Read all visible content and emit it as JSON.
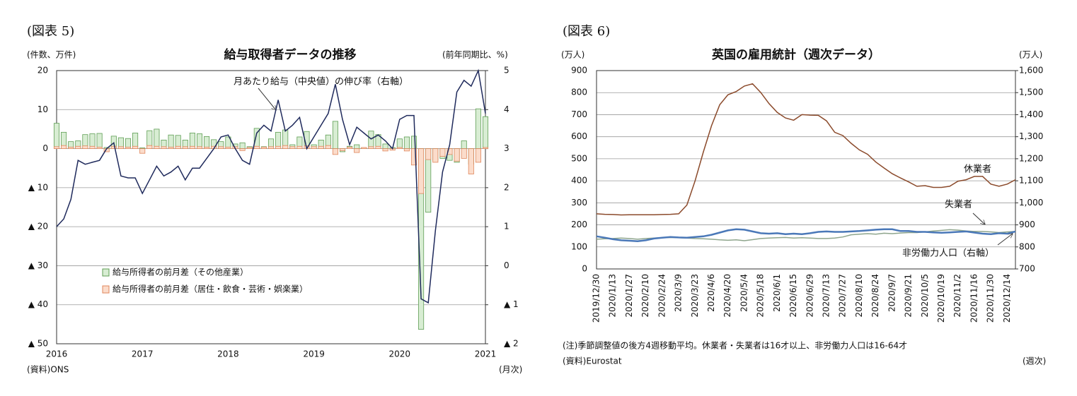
{
  "chart_data": [
    {
      "type": "combo",
      "figure_label": "(図表 5)",
      "title": "給与取得者データの推移",
      "y_unit": "(件数、万件)",
      "y2_unit": "(前年同期比、%)",
      "source": "(資料)ONS",
      "x_unit": "(月次)",
      "categories": [
        "2016",
        null,
        null,
        null,
        null,
        null,
        null,
        null,
        null,
        null,
        null,
        null,
        "2017",
        null,
        null,
        null,
        null,
        null,
        null,
        null,
        null,
        null,
        null,
        null,
        "2018",
        null,
        null,
        null,
        null,
        null,
        null,
        null,
        null,
        null,
        null,
        null,
        "2019",
        null,
        null,
        null,
        null,
        null,
        null,
        null,
        null,
        null,
        null,
        null,
        "2020",
        null,
        null,
        null,
        null,
        null,
        null,
        null,
        null,
        null,
        null,
        null,
        "2021"
      ],
      "ylim": [
        -50,
        20
      ],
      "yticks": [
        20,
        10,
        0,
        {
          "value": -10,
          "label": "▲ 10"
        },
        {
          "value": -20,
          "label": "▲ 20"
        },
        {
          "value": -30,
          "label": "▲ 30"
        },
        {
          "value": -40,
          "label": "▲ 40"
        },
        {
          "value": -50,
          "label": "▲ 50"
        }
      ],
      "y2lim": [
        -2,
        5
      ],
      "y2ticks": [
        5,
        4,
        3,
        2,
        1,
        0,
        {
          "value": -1,
          "label": "▲ 1"
        },
        {
          "value": -2,
          "label": "▲ 2"
        }
      ],
      "grid": true,
      "series": [
        {
          "name": "給与所得者の前月差（その他産業）",
          "type": "bar",
          "color": "#d8edd3",
          "stroke": "#5f9e55",
          "axis": "y",
          "values": [
            6.5,
            4.2,
            1.8,
            2.0,
            3.6,
            3.8,
            3.9,
            0.3,
            3.2,
            2.8,
            2.6,
            4.0,
            0.2,
            4.6,
            5.0,
            2.2,
            3.5,
            3.4,
            2.2,
            4.0,
            3.8,
            3.1,
            2.3,
            1.8,
            3.0,
            1.2,
            1.5,
            0.5,
            5.2,
            0.5,
            2.5,
            4.2,
            4.8,
            1.0,
            3.0,
            4.4,
            1.0,
            2.2,
            3.5,
            7.0,
            -0.8,
            0.6,
            1.0,
            0.2,
            4.5,
            3.6,
            1.2,
            0.3,
            2.5,
            3.0,
            3.2,
            -46.3,
            -16.3,
            -3.0,
            -2.5,
            -3.0,
            -3.5,
            2.0,
            -4.0,
            10.2,
            8.2
          ]
        },
        {
          "name": "給与所得者の前月差（居住・飲食・芸術・娯楽業）",
          "type": "bar",
          "color": "#fbdccb",
          "stroke": "#e0875c",
          "axis": "y",
          "values": [
            0.5,
            0.8,
            0.4,
            0.6,
            0.7,
            0.6,
            0.4,
            -0.8,
            0.6,
            0.5,
            0.4,
            0.6,
            -1.2,
            0.8,
            0.6,
            0.5,
            0.4,
            0.6,
            0.5,
            0.6,
            0.5,
            0.4,
            0.6,
            0.5,
            0.4,
            0.5,
            -0.5,
            0.3,
            0.6,
            0.4,
            0.5,
            0.6,
            0.8,
            0.5,
            0.6,
            0.7,
            0.5,
            0.6,
            0.8,
            -1.5,
            -0.5,
            0.4,
            -1.0,
            0.3,
            0.5,
            0.6,
            -0.6,
            -0.4,
            0.3,
            -0.6,
            -4.2,
            -11.5,
            -2.8,
            -3.5,
            -2.0,
            -1.5,
            -3.2,
            -2.5,
            -6.5,
            -3.5,
            0.3
          ]
        },
        {
          "name": "月あたり給与（中央値）の伸び率（右軸）",
          "type": "line",
          "color": "#1f2a5c",
          "axis": "y2",
          "values": [
            1.0,
            1.2,
            1.7,
            2.7,
            2.6,
            2.65,
            2.7,
            3.0,
            3.15,
            2.3,
            2.25,
            2.25,
            1.85,
            2.2,
            2.55,
            2.3,
            2.4,
            2.55,
            2.2,
            2.5,
            2.5,
            2.75,
            3.0,
            3.3,
            3.35,
            3.0,
            2.7,
            2.6,
            3.4,
            3.6,
            3.45,
            4.25,
            3.45,
            3.6,
            3.8,
            3.0,
            3.3,
            3.6,
            3.9,
            4.65,
            3.75,
            3.1,
            3.55,
            3.4,
            3.25,
            3.35,
            3.2,
            3.0,
            3.75,
            3.85,
            3.85,
            -0.85,
            -0.95,
            0.9,
            2.4,
            3.1,
            4.45,
            4.75,
            4.6,
            5.0,
            3.9
          ]
        }
      ]
    },
    {
      "type": "line",
      "figure_label": "(図表 6)",
      "title": "英国の雇用統計（週次データ）",
      "y_unit": "(万人)",
      "y2_unit": "(万人)",
      "note": "(注)季節調整値の後方4週移動平均。休業者・失業者は16才以上、非労働力人口は16-64才",
      "source": "(資料)Eurostat",
      "x_unit": "(週次)",
      "categories": [
        "2019/12/30",
        null,
        "2020/1/13",
        null,
        "2020/1/27",
        null,
        "2020/2/10",
        null,
        "2020/2/24",
        null,
        "2020/3/9",
        null,
        "2020/3/23",
        null,
        "2020/4/6",
        null,
        "2020/4/20",
        null,
        "2020/5/4",
        null,
        "2020/5/18",
        null,
        "2020/6/1",
        null,
        "2020/6/15",
        null,
        "2020/6/29",
        null,
        "2020/7/13",
        null,
        "2020/7/27",
        null,
        "2020/8/10",
        null,
        "2020/8/24",
        null,
        "2020/9/7",
        null,
        "2020/9/21",
        null,
        "2020/10/5",
        null,
        "2020/10/19",
        null,
        "2020/11/2",
        null,
        "2020/11/16",
        null,
        "2020/11/30",
        null,
        "2020/12/14",
        null
      ],
      "ylim": [
        0,
        900
      ],
      "yticks": [
        0,
        100,
        200,
        300,
        400,
        500,
        600,
        700,
        800,
        900
      ],
      "y2lim": [
        700,
        1600
      ],
      "y2ticks": [
        700,
        800,
        900,
        {
          "value": 1000,
          "label": "1,000"
        },
        {
          "value": 1100,
          "label": "1,100"
        },
        {
          "value": 1200,
          "label": "1,200"
        },
        {
          "value": 1300,
          "label": "1,300"
        },
        {
          "value": 1400,
          "label": "1,400"
        },
        {
          "value": 1500,
          "label": "1,500"
        },
        {
          "value": 1600,
          "label": "1,600"
        }
      ],
      "grid": true,
      "series": [
        {
          "name": "休業者",
          "type": "line",
          "color": "#8b4a2b",
          "axis": "y",
          "values": [
            250,
            248,
            247,
            245,
            246,
            246,
            246,
            246,
            247,
            248,
            250,
            290,
            400,
            530,
            650,
            745,
            790,
            805,
            830,
            840,
            800,
            750,
            710,
            685,
            675,
            700,
            698,
            697,
            672,
            620,
            605,
            570,
            540,
            520,
            485,
            458,
            432,
            413,
            395,
            375,
            378,
            370,
            370,
            375,
            398,
            405,
            420,
            420,
            385,
            375,
            385,
            405
          ]
        },
        {
          "name": "失業者",
          "type": "line",
          "color": "#8ea58c",
          "axis": "y",
          "values": [
            135,
            137,
            138,
            140,
            138,
            135,
            138,
            140,
            142,
            143,
            142,
            140,
            138,
            137,
            135,
            132,
            130,
            132,
            128,
            133,
            138,
            140,
            142,
            143,
            140,
            142,
            140,
            138,
            138,
            140,
            145,
            155,
            158,
            160,
            158,
            162,
            160,
            163,
            165,
            165,
            168,
            172,
            175,
            178,
            176,
            172,
            170,
            170,
            168,
            165,
            168,
            170
          ]
        },
        {
          "name": "非労働力人口（右軸）",
          "type": "line",
          "color": "#4a78b8",
          "axis": "y2",
          "values": [
            848,
            842,
            835,
            830,
            828,
            826,
            830,
            838,
            842,
            845,
            843,
            842,
            845,
            848,
            855,
            865,
            875,
            880,
            878,
            870,
            862,
            860,
            862,
            858,
            860,
            858,
            862,
            868,
            870,
            868,
            868,
            870,
            872,
            875,
            878,
            880,
            880,
            872,
            872,
            868,
            868,
            866,
            864,
            866,
            868,
            870,
            865,
            860,
            858,
            862,
            860,
            870
          ]
        }
      ]
    }
  ]
}
